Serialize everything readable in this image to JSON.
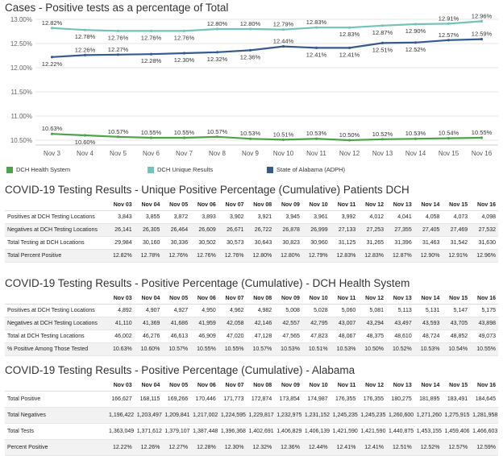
{
  "page": {
    "chart_title": "Cases - Positive tests as a percentage of Total",
    "table1_title": "COVID-19 Testing Results - Unique Positive Percentage (Cumulative) Patients DCH",
    "table2_title": "COVID-19 Testing Results - Positive Percentage (Cumulative) - DCH Health System",
    "table3_title": "COVID-19 Testing Results - Positive Percentage (Cumulative) - Alabama"
  },
  "chart_data": {
    "type": "line",
    "title": "Cases - Positive tests as a percentage of Total",
    "xlabel": "",
    "ylabel": "",
    "ylim": [
      10.4,
      13.0
    ],
    "yticks": [
      "13.00%",
      "12.50%",
      "12.00%",
      "11.50%",
      "11.00%",
      "10.50%"
    ],
    "ytick_values": [
      13.0,
      12.5,
      12.0,
      11.5,
      11.0,
      10.5
    ],
    "categories": [
      "Nov 3",
      "Nov 4",
      "Nov 5",
      "Nov 6",
      "Nov 7",
      "Nov 8",
      "Nov 9",
      "Nov 10",
      "Nov 11",
      "Nov 12",
      "Nov 13",
      "Nov 14",
      "Nov 15",
      "Nov 16"
    ],
    "grid": "horizontal",
    "legend_position": "bottom",
    "series": [
      {
        "name": "DCH Health System",
        "color": "#4fa24a",
        "values": [
          10.63,
          10.6,
          10.57,
          10.55,
          10.55,
          10.57,
          10.53,
          10.51,
          10.53,
          10.5,
          10.52,
          10.53,
          10.54,
          10.55
        ],
        "labels": [
          "10.63%",
          "10.60%",
          "10.57%",
          "10.55%",
          "10.55%",
          "10.57%",
          "10.53%",
          "10.51%",
          "10.53%",
          "10.50%",
          "10.52%",
          "10.53%",
          "10.54%",
          "10.55%"
        ],
        "label_side": [
          "above",
          "below",
          "above",
          "above",
          "above",
          "above",
          "above",
          "above",
          "above",
          "above",
          "above",
          "above",
          "above",
          "above"
        ]
      },
      {
        "name": "DCH Unique Results",
        "color": "#75c2b8",
        "values": [
          12.82,
          12.78,
          12.76,
          12.76,
          12.76,
          12.8,
          12.8,
          12.79,
          12.83,
          12.83,
          12.87,
          12.9,
          12.91,
          12.96
        ],
        "labels": [
          "12.82%",
          "12.78%",
          "12.76%",
          "12.76%",
          "12.76%",
          "12.80%",
          "12.80%",
          "12.79%",
          "12.83%",
          "12.83%",
          "12.87%",
          "12.90%",
          "12.91%",
          "12.96%"
        ],
        "label_side": [
          "above",
          "below",
          "below",
          "below",
          "below",
          "above",
          "above",
          "above",
          "above",
          "below",
          "below",
          "below",
          "above",
          "above"
        ]
      },
      {
        "name": "State of Alabama (ADPH)",
        "color": "#365a8c",
        "values": [
          12.22,
          12.26,
          12.27,
          12.28,
          12.3,
          12.32,
          12.36,
          12.44,
          12.41,
          12.41,
          12.51,
          12.52,
          12.57,
          12.59
        ],
        "labels": [
          "12.22%",
          "12.26%",
          "12.27%",
          "12.28%",
          "12.30%",
          "12.32%",
          "12.36%",
          "12.44%",
          "12.41%",
          "12.41%",
          "12.51%",
          "12.52%",
          "12.57%",
          "12.59%"
        ],
        "label_side": [
          "below",
          "above",
          "above",
          "below",
          "below",
          "below",
          "below",
          "above",
          "below",
          "below",
          "below",
          "below",
          "above",
          "above"
        ]
      }
    ]
  },
  "tables": [
    {
      "columns": [
        "Nov 03",
        "Nov 04",
        "Nov 05",
        "Nov 06",
        "Nov 07",
        "Nov 08",
        "Nov 09",
        "Nov 10",
        "Nov 11",
        "Nov 12",
        "Nov 13",
        "Nov 14",
        "Nov 15",
        "Nov 16"
      ],
      "rows": [
        {
          "label": "Positives at DCH Testing Locations",
          "values": [
            "3,843",
            "3,855",
            "3,872",
            "3,893",
            "3,902",
            "3,921",
            "3,945",
            "3,961",
            "3,992",
            "4,012",
            "4,041",
            "4,058",
            "4,073",
            "4,098"
          ]
        },
        {
          "label": "Negatives at DCH Testing Locations",
          "values": [
            "26,141",
            "26,305",
            "26,464",
            "26,609",
            "26,671",
            "26,722",
            "26,878",
            "26,999",
            "27,133",
            "27,253",
            "27,355",
            "27,405",
            "27,469",
            "27,532"
          ]
        },
        {
          "label": "Total Testing at DCH Locations",
          "values": [
            "29,984",
            "30,160",
            "30,336",
            "30,502",
            "30,573",
            "30,643",
            "30,823",
            "30,960",
            "31,125",
            "31,265",
            "31,396",
            "31,463",
            "31,542",
            "31,630"
          ]
        },
        {
          "label": "Total Percent Positive",
          "values": [
            "12.82%",
            "12.78%",
            "12.76%",
            "12.76%",
            "12.76%",
            "12.80%",
            "12.80%",
            "12.79%",
            "12.83%",
            "12.83%",
            "12.87%",
            "12.90%",
            "12.91%",
            "12.96%"
          ]
        }
      ]
    },
    {
      "columns": [
        "Nov 03",
        "Nov 04",
        "Nov 05",
        "Nov 06",
        "Nov 07",
        "Nov 08",
        "Nov 09",
        "Nov 10",
        "Nov 11",
        "Nov 12",
        "Nov 13",
        "Nov 14",
        "Nov 15",
        "Nov 16"
      ],
      "rows": [
        {
          "label": "Positives at DCH Testing Locations",
          "values": [
            "4,892",
            "4,907",
            "4,927",
            "4,950",
            "4,962",
            "4,982",
            "5,008",
            "5,028",
            "5,060",
            "5,081",
            "5,113",
            "5,131",
            "5,147",
            "5,175"
          ]
        },
        {
          "label": "Negatives at DCH Testing Locations",
          "values": [
            "41,110",
            "41,369",
            "41,686",
            "41,959",
            "42,058",
            "42,146",
            "42,557",
            "42,795",
            "43,007",
            "43,294",
            "43,497",
            "43,593",
            "43,705",
            "43,898"
          ]
        },
        {
          "label": "Total at DCH Testing Locations",
          "values": [
            "46,002",
            "46,276",
            "46,613",
            "46,909",
            "47,020",
            "47,128",
            "47,565",
            "47,823",
            "48,067",
            "48,375",
            "48,610",
            "48,724",
            "48,852",
            "49,073"
          ]
        },
        {
          "label": "% Positive Among Those Tested",
          "values": [
            "10.63%",
            "10.60%",
            "10.57%",
            "10.55%",
            "10.55%",
            "10.57%",
            "10.53%",
            "10.51%",
            "10.53%",
            "10.50%",
            "10.52%",
            "10.53%",
            "10.54%",
            "10.55%"
          ]
        }
      ]
    },
    {
      "columns": [
        "Nov 03",
        "Nov 04",
        "Nov 05",
        "Nov 06",
        "Nov 07",
        "Nov 08",
        "Nov 09",
        "Nov 10",
        "Nov 11",
        "Nov 12",
        "Nov 13",
        "Nov 14",
        "Nov 15",
        "Nov 16"
      ],
      "rows": [
        {
          "label": "Total Positive",
          "values": [
            "166,627",
            "168,115",
            "169,266",
            "170,446",
            "171,773",
            "172,874",
            "173,854",
            "174,987",
            "176,355",
            "176,355",
            "180,275",
            "181,895",
            "183,491",
            "184,645"
          ]
        },
        {
          "label": "Total Negatives",
          "values": [
            "1,196,422",
            "1,203,497",
            "1,209,841",
            "1,217,002",
            "1,224,595",
            "1,229,817",
            "1,232,975",
            "1,231,152",
            "1,245,235",
            "1,245,235",
            "1,260,600",
            "1,271,260",
            "1,275,915",
            "1,281,958"
          ]
        },
        {
          "label": "Total Tests",
          "values": [
            "1,363,049",
            "1,371,612",
            "1,379,107",
            "1,387,448",
            "1,396,368",
            "1,402,691",
            "1,406,829",
            "1,406,139",
            "1,421,590",
            "1,421,590",
            "1,440,875",
            "1,453,155",
            "1,459,406",
            "1,466,603"
          ]
        },
        {
          "label": "Percent Positive",
          "values": [
            "12.22%",
            "12.26%",
            "12.27%",
            "12.28%",
            "12.30%",
            "12.32%",
            "12.36%",
            "12.44%",
            "12.41%",
            "12.41%",
            "12.51%",
            "12.52%",
            "12.57%",
            "12.59%"
          ]
        }
      ]
    }
  ]
}
